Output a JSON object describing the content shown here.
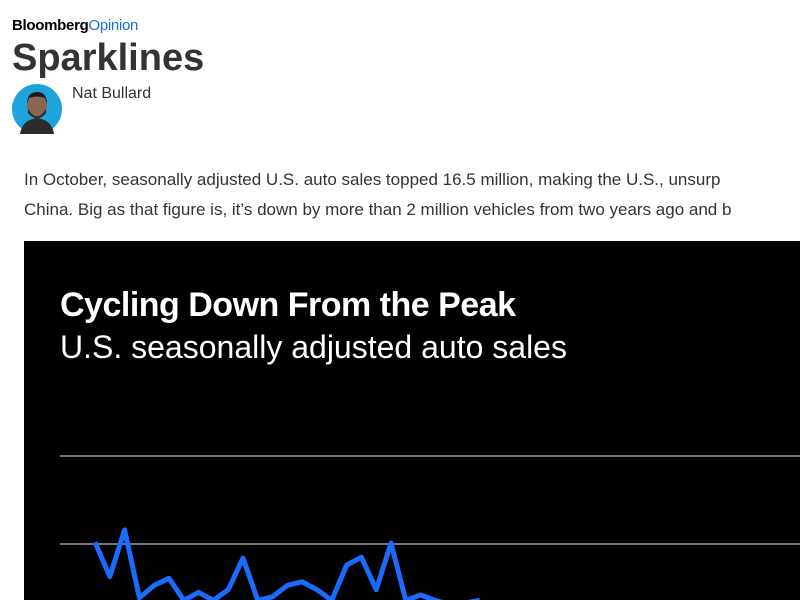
{
  "header": {
    "brand": "Bloomberg",
    "brand_section": "Opinion",
    "title": "Sparklines",
    "author": "Nat Bullard"
  },
  "article": {
    "paragraphs": [
      "In October, seasonally adjusted U.S. auto sales topped 16.5 million, making the U.S., unsurp",
      "China. Big as that figure is, it’s down by more than 2 million vehicles from two years ago and b"
    ]
  },
  "chart_data": {
    "type": "line",
    "title": "Cycling Down From the Peak",
    "subtitle": "U.S. seasonally adjusted auto sales",
    "series": [
      {
        "color": "#1a6cff",
        "values": [
          18.02,
          17.63,
          18.16,
          17.39,
          17.53,
          17.61,
          17.36,
          17.45,
          17.36,
          17.48,
          17.84,
          17.36,
          17.4,
          17.53,
          17.57,
          17.48,
          17.36,
          17.76,
          17.85,
          17.48,
          18.01,
          17.36,
          17.42,
          17.36,
          17.31,
          17.33,
          17.36
        ]
      }
    ],
    "ylim": [
      17.3,
      19
    ],
    "yticks": [
      18,
      19
    ],
    "grid": true
  }
}
